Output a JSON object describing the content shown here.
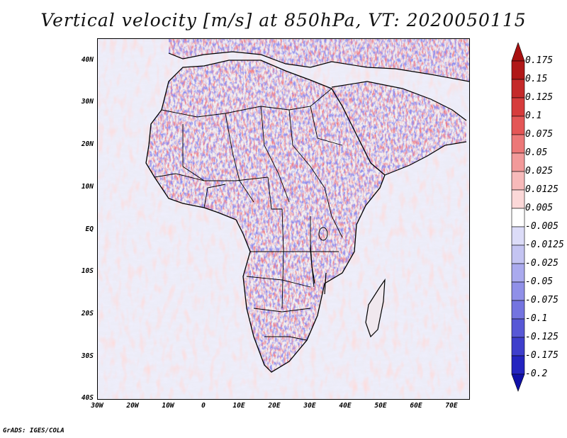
{
  "title": "Vertical velocity [m/s] at 850hPa, VT: 2020050115",
  "footer": "GrADS: IGES/COLA",
  "lat_labels": [
    "40N",
    "30N",
    "20N",
    "10N",
    "EQ",
    "10S",
    "20S",
    "30S",
    "40S"
  ],
  "lon_labels": [
    "30W",
    "20W",
    "10W",
    "0",
    "10E",
    "20E",
    "30E",
    "40E",
    "50E",
    "60E",
    "70E"
  ],
  "colorbar": {
    "labels": [
      "0.175",
      "0.15",
      "0.125",
      "0.1",
      "0.075",
      "0.05",
      "0.025",
      "0.0125",
      "0.005",
      "-0.005",
      "-0.0125",
      "-0.025",
      "-0.05",
      "-0.075",
      "-0.1",
      "-0.125",
      "-0.175",
      "-0.2"
    ],
    "colors": [
      "#b01818",
      "#c42a2a",
      "#d63c3c",
      "#e45656",
      "#ec7878",
      "#f29a9a",
      "#f7baba",
      "#fbd8d8",
      "#ffffff",
      "#dcdcf8",
      "#c4c4f2",
      "#aaaaee",
      "#9090e8",
      "#7474e0",
      "#5858d6",
      "#3e3ecc",
      "#2424c0",
      "#1212b0"
    ],
    "top_arrow_color": "#a81010",
    "bottom_arrow_color": "#1010a8"
  },
  "map": {
    "field_colors": {
      "positive": "#e04848",
      "negative": "#5858e0",
      "neutral_land": "#f2eef0"
    }
  }
}
